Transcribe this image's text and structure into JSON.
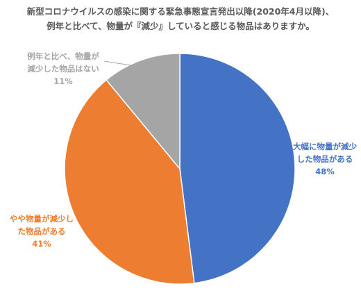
{
  "chart_data": {
    "type": "pie",
    "title": "新型コロナウイルスの感染に関する緊急事態宣言発出以降(2020年4月以降)、例年と比べて、物量が『減少』していると感じる物品はありますか。",
    "title_lines": [
      "新型コロナウイルスの感染に関する緊急事態宣言発出以降(2020年4月以降)、",
      "例年と比べて、物量が『減少』していると感じる物品はありますか。"
    ],
    "slices": [
      {
        "label_lines": [
          "大幅に物量が減少",
          "した物品がある"
        ],
        "value": 48,
        "value_label": "48%",
        "color": "#4472C4"
      },
      {
        "label_lines": [
          "やや物量が減少し",
          "た物品がある"
        ],
        "value": 41,
        "value_label": "41%",
        "color": "#ED7D31"
      },
      {
        "label_lines": [
          "例年と比べ、物量が",
          "減少した物品はない"
        ],
        "value": 11,
        "value_label": "11%",
        "color": "#A5A5A5"
      }
    ],
    "label_text_colors": [
      "#4472C4",
      "#ED7D31",
      "#A5A5A5"
    ],
    "legend": "none"
  }
}
